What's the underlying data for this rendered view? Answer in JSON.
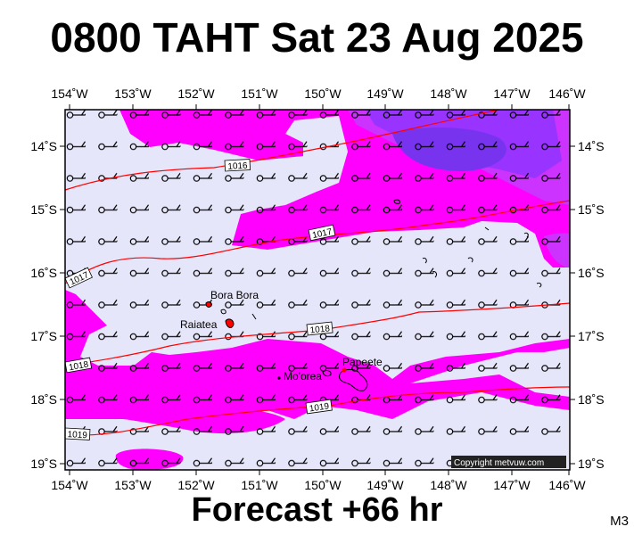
{
  "title": "0800 TAHT Sat 23 Aug 2025",
  "footer": "Forecast +66 hr",
  "model_code": "M3",
  "copyright": "Copyright metvuw.com",
  "colors": {
    "background_band": "#e6e6fa",
    "magenta": "#ff00ff",
    "violet": "#cc33ff",
    "purple": "#9933ff",
    "deep_purple": "#7733ee",
    "isobar": "#ff0000",
    "coast": "#000000"
  },
  "map": {
    "lon_labels": [
      "154˚W",
      "153˚W",
      "152˚W",
      "151˚W",
      "150˚W",
      "149˚W",
      "148˚W",
      "147˚W",
      "146˚W"
    ],
    "lat_labels": [
      "14˚S",
      "15˚S",
      "16˚S",
      "17˚S",
      "18˚S",
      "19˚S"
    ],
    "isobars": [
      {
        "value": "1016"
      },
      {
        "value": "1017"
      },
      {
        "value": "1017"
      },
      {
        "value": "1018"
      },
      {
        "value": "1018"
      },
      {
        "value": "1019"
      },
      {
        "value": "1019"
      }
    ],
    "places": [
      {
        "name": "Bora Bora"
      },
      {
        "name": "Raiatea"
      },
      {
        "name": "Papeete"
      },
      {
        "name": "Mo'orea"
      }
    ]
  }
}
